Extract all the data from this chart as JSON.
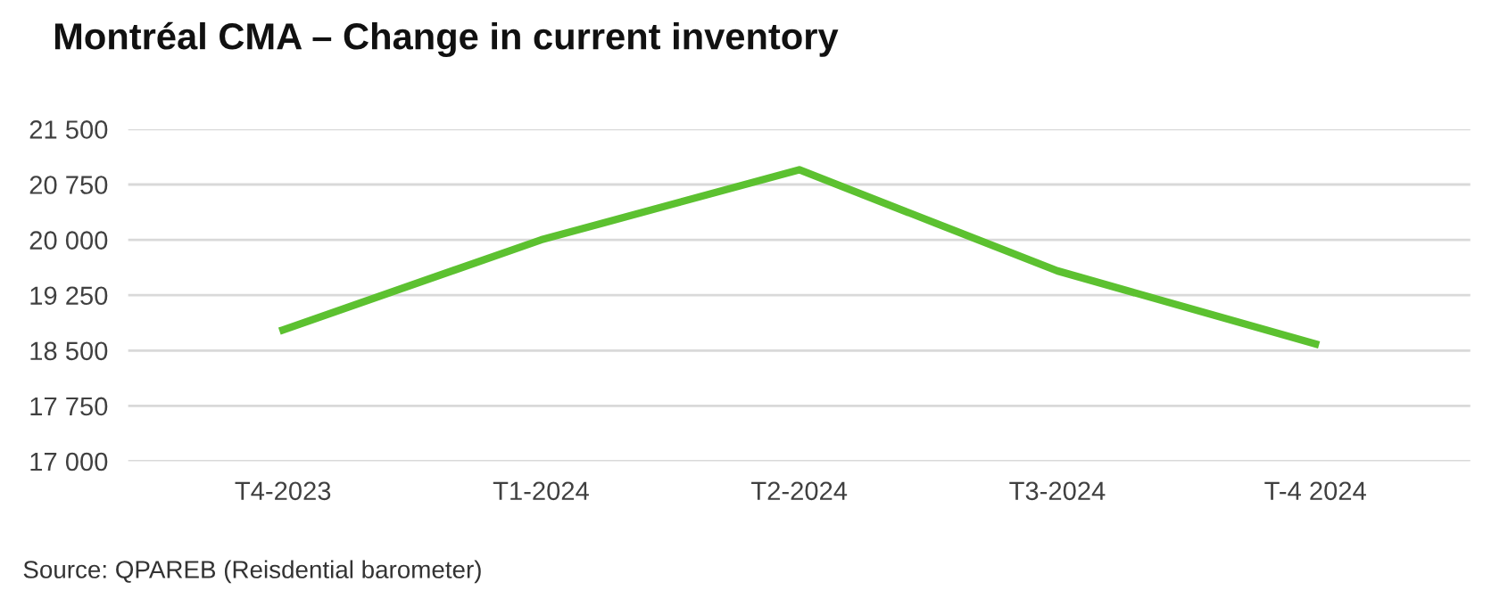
{
  "chart_data": {
    "type": "line",
    "title": "Montréal CMA – Change in current inventory",
    "categories": [
      "T4-2023",
      "T1-2024",
      "T2-2024",
      "T3-2024",
      "T-4 2024"
    ],
    "series": [
      {
        "color": "#5cc130",
        "values": [
          18780,
          20000,
          20950,
          19580,
          18590
        ]
      }
    ],
    "ylim": [
      17000,
      21500
    ],
    "yticks": [
      {
        "value": 17000,
        "label": "17 000"
      },
      {
        "value": 17750,
        "label": "17 750"
      },
      {
        "value": 18500,
        "label": "18 500"
      },
      {
        "value": 19250,
        "label": "19 250"
      },
      {
        "value": 20000,
        "label": "20 000"
      },
      {
        "value": 20750,
        "label": "20 750"
      },
      {
        "value": 21500,
        "label": "21 500"
      }
    ],
    "grid": "y",
    "marker": "none",
    "line_style": "solid",
    "annotations": [
      "Source: QPAREB (Reisdential barometer)"
    ]
  }
}
